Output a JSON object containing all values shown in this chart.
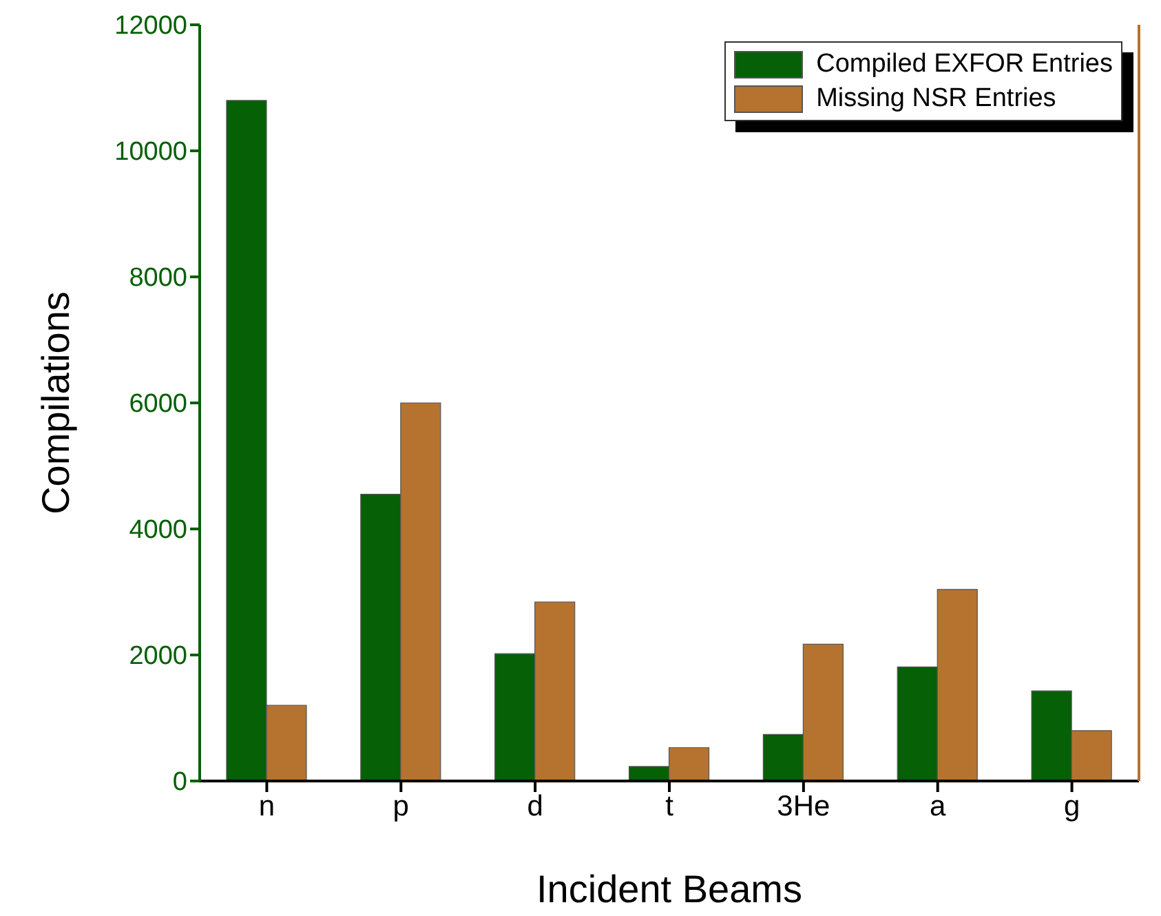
{
  "chart_data": {
    "type": "bar",
    "xlabel": "Incident Beams",
    "ylabel": "Compilations",
    "categories": [
      "n",
      "p",
      "d",
      "t",
      "3He",
      "a",
      "g"
    ],
    "series": [
      {
        "name": "Compiled EXFOR Entries",
        "color": "#066006",
        "values": [
          10800,
          4550,
          2020,
          230,
          740,
          1810,
          1430
        ]
      },
      {
        "name": "Missing NSR Entries",
        "color": "#b5732f",
        "values": [
          1200,
          6000,
          2840,
          530,
          2170,
          3040,
          800
        ]
      }
    ],
    "ylim": [
      0,
      12000
    ],
    "yticks": [
      0,
      2000,
      4000,
      6000,
      8000,
      10000,
      12000
    ],
    "legend": "top right",
    "grid": false
  }
}
